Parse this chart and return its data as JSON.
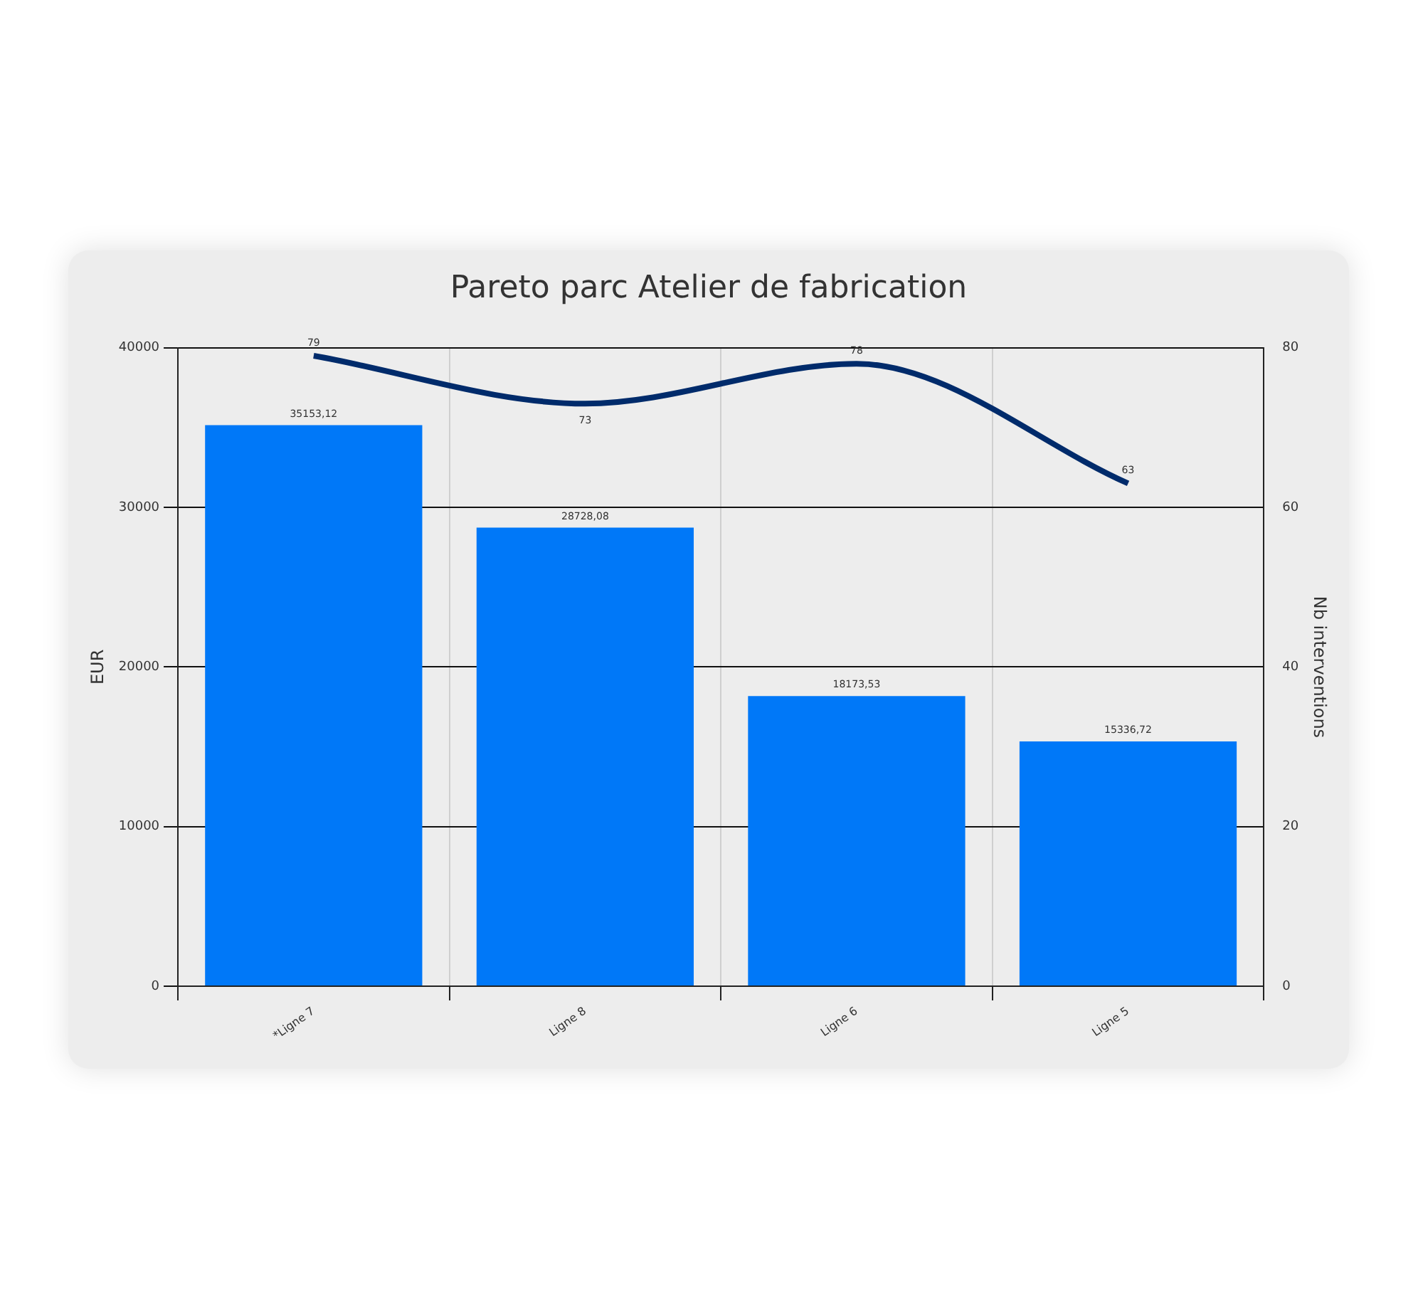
{
  "chart_data": {
    "type": "bar",
    "title": "Pareto parc Atelier de fabrication",
    "ylabel": "EUR",
    "y2label": "Nb interventions",
    "categories": [
      "*Ligne 7",
      "Ligne 8",
      "Ligne 6",
      "Ligne 5"
    ],
    "series": [
      {
        "color": "#0078f8",
        "values": [
          35153.12,
          28728.08,
          18173.53,
          15336.72
        ],
        "value_labels": [
          "35153,12",
          "28728,08",
          "18173,53",
          "15336,72"
        ]
      },
      {
        "type": "line",
        "axis": "y2",
        "color": "#002b6b",
        "values": [
          79,
          73,
          78,
          63
        ],
        "value_labels": [
          "79",
          "73",
          "78",
          "63"
        ]
      }
    ],
    "ylim": [
      0,
      40000
    ],
    "yticks": [
      0,
      10000,
      20000,
      30000,
      40000
    ],
    "y2lim": [
      0,
      80
    ],
    "y2ticks": [
      0,
      20,
      40,
      60,
      80
    ],
    "grid": true,
    "legend": false,
    "marker": "none"
  }
}
